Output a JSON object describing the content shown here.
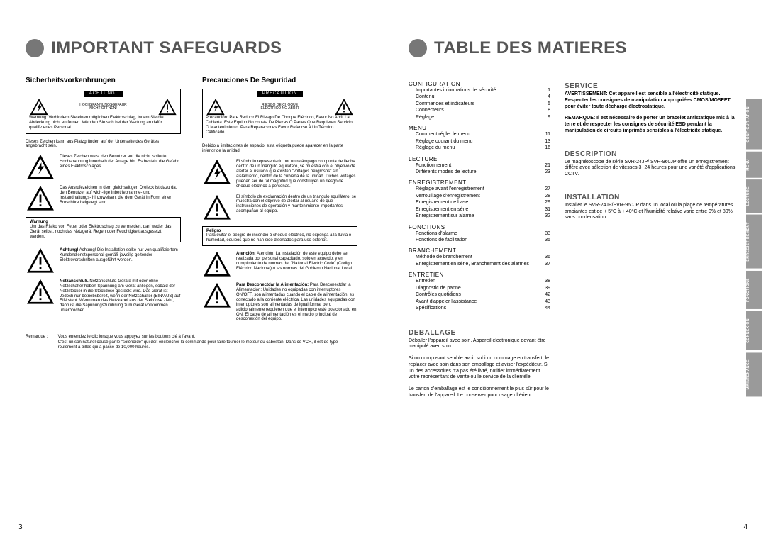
{
  "colors": {
    "accent_grey": "#777777",
    "tab_grey": "#9a9a9a",
    "text_grey": "#555555"
  },
  "page_left_num": "3",
  "page_right_num": "4",
  "left_title": "IMPORTANT SAFEGUARDS",
  "right_title": "TABLE DES MATIERES",
  "de": {
    "head": "Sicherheitsvorkenhrungen",
    "box_label": "ACHTUNG!",
    "box_mid": "HOCHSPANNUNGSGEFAHR\nNICHT ÖFFNEN!",
    "box_sub": "Warnung: Verhindern Sie einen möglichen Elektroschlag, indem Sie die Abdeckung nicht entfernen. Wenden Sie sich bei der Wartung an dafür qualifiziertes Personal.",
    "note_under": "Dieses Zeichen kann aus Platzgründen auf der Unterseite des Gerätes angebracht sein.",
    "lightning_txt": "Dieses Zeichen weist den Benutzer auf die nicht isolierte Hochspannung innerhalb der Anlage hin. Es besteht die Gefahr eines Elektroschlages.",
    "exclaim_txt": "Das Ausrufezeichen in dem gleichseitigen Dreieck ist dazu da, den Benutzer auf wich-tige Inbetriebnahme- und Instandhaltungs- hinzuweisen, die dem Gerät in Form einer Broschüre beigelegt sind.",
    "textbox_head": "Warnung",
    "textbox_body": "Um das Risiko von Feuer oder Elektroschlag zu vermeiden, darf weder das Gerät selbst, noch das Netzgerät Regen oder Feuchtigkeit ausgesetzt werden.",
    "achtung_txt": "Achtung! Die Installation sollte nur von qualifiziertem Kundendienstspersonal gemäß jeweilig geltender Elektrovorschriften ausgeführt werden.",
    "netz_txt": "Netzanschluß. Geräte mit oder ohne Netzschalter haben Spannung am Gerät anliegen, sobald der Netzstecker in die Steckdose gesteckt wird. Das Gerät ist Jedoch nur betriebsbereit, wenn der Netzschalter (EIN/AUS) auf EIN steht. Wenn man das Netzkabel aus der Stekdose zieht, dann ist die Sapnnungszuführung zum Gerät vollkommen unterbrochen."
  },
  "es": {
    "head": "Precauciones De Seguridad",
    "box_label": "PRECAUTION",
    "box_mid": "RIESGO DE CHOQUE\nELECTRICO NO ABRIR",
    "box_sub": "Precaución: Pare Reducir El Riesgo De Choque Eléctrico, Favor No Abrir La Cubierta. Este Equipo No consta De Piezas O Partes Que Requieren Servicio O Mantenimiento. Para Reparaciones Favor Referirse A Un Técnico Calificado.",
    "note_under": "Debido a limitaciones de espacio, esta etiqueta puede aparecer en la parte inferior de la unidad.",
    "lightning_txt": "El símbolo representado por un relámpago con punta de flecha dentro de un triángulo equilátero, se muestra con el objetivo de alertar al usuario que existen \"voltages peligrosos\" sin aislamiento, dentro de la cubierta de la unidad. Dichos voltages pueden ser de tal magnitud que constituyen un riesgo de choque eléctrico a personas.",
    "exclaim_txt": "El símbolo de exclamación dentro de un triángulo equilátero, se muestra con el objetivo de alertar al usuario de que instrucciones de operación y mantenimiento importantes acompañan al equipo.",
    "textbox_head": "Peligro",
    "textbox_body": "Para evitar el peligro de incendio ó choque eléctrico, no exponga a la lluvia ó humedad, equipos que no han sido diseñados para uso exterior.",
    "achtung_txt": "Atención: La instalación de este equipo debe ser realizada por personal capacitado, solo en acuerdo, y en cumplimiento de normas del \"National Electric Code\" (Código Eléctrico Nacional) ó las normas del Gobierno Nacional Local.",
    "netz_txt": "Para Desconectdar la Alimentación: Unidades no equipadas con interruptores ON/OFF, son alimentadas cuando el cable de alimentación, es conectado a la corriente eléctrica. Las unidades equipadas con interruptores son alimentadas de igual forma, pero adicionalmente requieren que el interruptor esté posicionado en ON. El cable de alimentación es el medio principal de desconexión del equipo."
  },
  "remark": {
    "label": "Remarque :",
    "body": "Vous entendez le clic lorsque vous appuyez sur les boutons clé à l'avant.\nC'est un son naturel causé par le \"solénoïde\" qui doit enclencher la commande pour faire tourner le moteur du cabestan. Dans ce VCR, il est de type roulement à billes qui a passé de 10,000 heures."
  },
  "toc": {
    "sections": [
      {
        "title": "CONFIGURATION",
        "items": [
          {
            "t": "Importantes informations de sécurité",
            "p": "1"
          },
          {
            "t": "Contenu",
            "p": "4"
          },
          {
            "t": "Commandes et indicateurs",
            "p": "5"
          },
          {
            "t": "Connecteurs",
            "p": "8"
          },
          {
            "t": "Réglage",
            "p": "9"
          }
        ]
      },
      {
        "title": "MENU",
        "items": [
          {
            "t": "Comment régler le menu",
            "p": "11"
          },
          {
            "t": "Réglage courant du menu",
            "p": "13"
          },
          {
            "t": "Réglage du menu",
            "p": "16"
          }
        ]
      },
      {
        "title": "LECTURE",
        "items": [
          {
            "t": "Fonctionnement",
            "p": "21"
          },
          {
            "t": "Différents modes de lecture",
            "p": "23"
          }
        ]
      },
      {
        "title": "ENREGISTREMENT",
        "items": [
          {
            "t": "Réglage avant l'enregistrement",
            "p": "27"
          },
          {
            "t": "Verrouillage d'enregistrement",
            "p": "28"
          },
          {
            "t": "Enregistrement de base",
            "p": "29"
          },
          {
            "t": "Enregistrement en série",
            "p": "31"
          },
          {
            "t": "Enregistrement sur alarme",
            "p": "32"
          }
        ]
      },
      {
        "title": "FONCTIONS",
        "items": [
          {
            "t": "Fonctions d'alarme",
            "p": "33"
          },
          {
            "t": "Fonctions de facilitation",
            "p": "35"
          }
        ]
      },
      {
        "title": "BRANCHEMENT",
        "items": [
          {
            "t": "Méthode de branchement",
            "p": "36"
          },
          {
            "t": "Enregistrement en série, Branchement des alarmes",
            "p": "37"
          }
        ]
      },
      {
        "title": "ENTRETIEN",
        "items": [
          {
            "t": "Entretien",
            "p": "38"
          },
          {
            "t": "Diagnostic de panne",
            "p": "39"
          },
          {
            "t": "Contrôles quotidiens",
            "p": "42"
          },
          {
            "t": "Avant d'appeler l'assistance",
            "p": "43"
          },
          {
            "t": "Spécifications",
            "p": "44"
          }
        ]
      }
    ]
  },
  "info": {
    "deballage_h": "DEBALLAGE",
    "deballage_p1": "Déballer l'appareil avec soin. Appareil électronique devant être manipulé avec soin.",
    "deballage_p2": "Si un composant semble avoir subi un dommage en transfert, le replacer avec soin dans son emballage et aviser l'expéditeur. Si un des accessoires n'a pas été livré, notifier immédiatement votre représentant de vente ou le service de la clientèle.",
    "deballage_p3": "Le carton d'emballage est le conditionnement le plus sûr pour le transfert de l'appareil. Le conserver pour usage ultérieur.",
    "service_h": "SERVICE",
    "service_p1": "AVERTISSEMENT: Cet appareil est sensible à l'électricité statique. Respecter les consignes de manipulation appropriées CMOS/MOSFET pour éviter toute décharge électrostatique.",
    "service_p2": "REMARQUE: Il est nécessaire de porter un bracelet antistatique mis à la terre et de respecter les consignes de sécurité ESD pendant la manipulation de circuits imprimés sensibles à l'électricité statique.",
    "desc_h": "DESCRIPTION",
    "desc_p": "Le magnétoscope de série SVR-24JP/ SVR-960JP offre un enregistrement différé avec sélection de vitesses 3~24 heures pour une variété d'applications CCTV.",
    "inst_h": "INSTALLATION",
    "inst_p": "Installer le SVR-24JP/SVR-960JP dans un local où la plage de températures ambiantes est de + 5°C à + 40°C et l'humidité relative varie entre 0% et 80% sans condensation."
  },
  "tabs": [
    "CONFIGUR-ATION",
    "MENU",
    "LECTURE",
    "ENREGIST REMENT",
    "FONCTIONS",
    "CONNEXION",
    "MAINTENANCE"
  ]
}
